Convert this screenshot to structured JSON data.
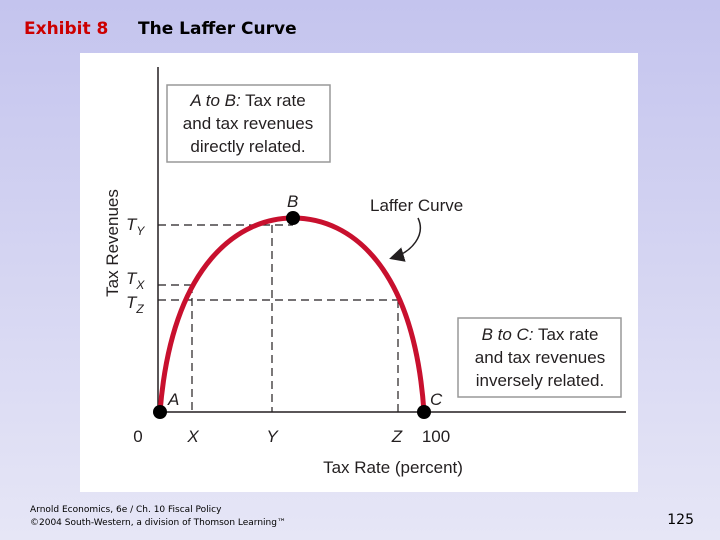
{
  "header": {
    "exhibit": "Exhibit 8",
    "title": "The Laffer Curve"
  },
  "diagram": {
    "y_axis_label": "Tax Revenues",
    "x_axis_label": "Tax Rate (percent)",
    "y_labels": [
      {
        "main": "T",
        "sub": "Y"
      },
      {
        "main": "T",
        "sub": "X"
      },
      {
        "main": "T",
        "sub": "Z"
      }
    ],
    "x_labels": [
      "0",
      "X",
      "Y",
      "Z",
      "100"
    ],
    "points": [
      "A",
      "B",
      "C"
    ],
    "curve_label": "Laffer Curve",
    "box_ab": {
      "lead": "A to B:",
      "lines": [
        "Tax rate",
        "and tax revenues",
        "directly related."
      ]
    },
    "box_bc": {
      "lead": "B to C:",
      "lines": [
        "Tax rate",
        "and tax revenues",
        "inversely related."
      ]
    }
  },
  "footer": {
    "source": "Arnold Economics, 6e / Ch. 10 Fiscal Policy",
    "copyright": "©2004 South-Western, a division of Thomson Learning™",
    "page": "125"
  }
}
